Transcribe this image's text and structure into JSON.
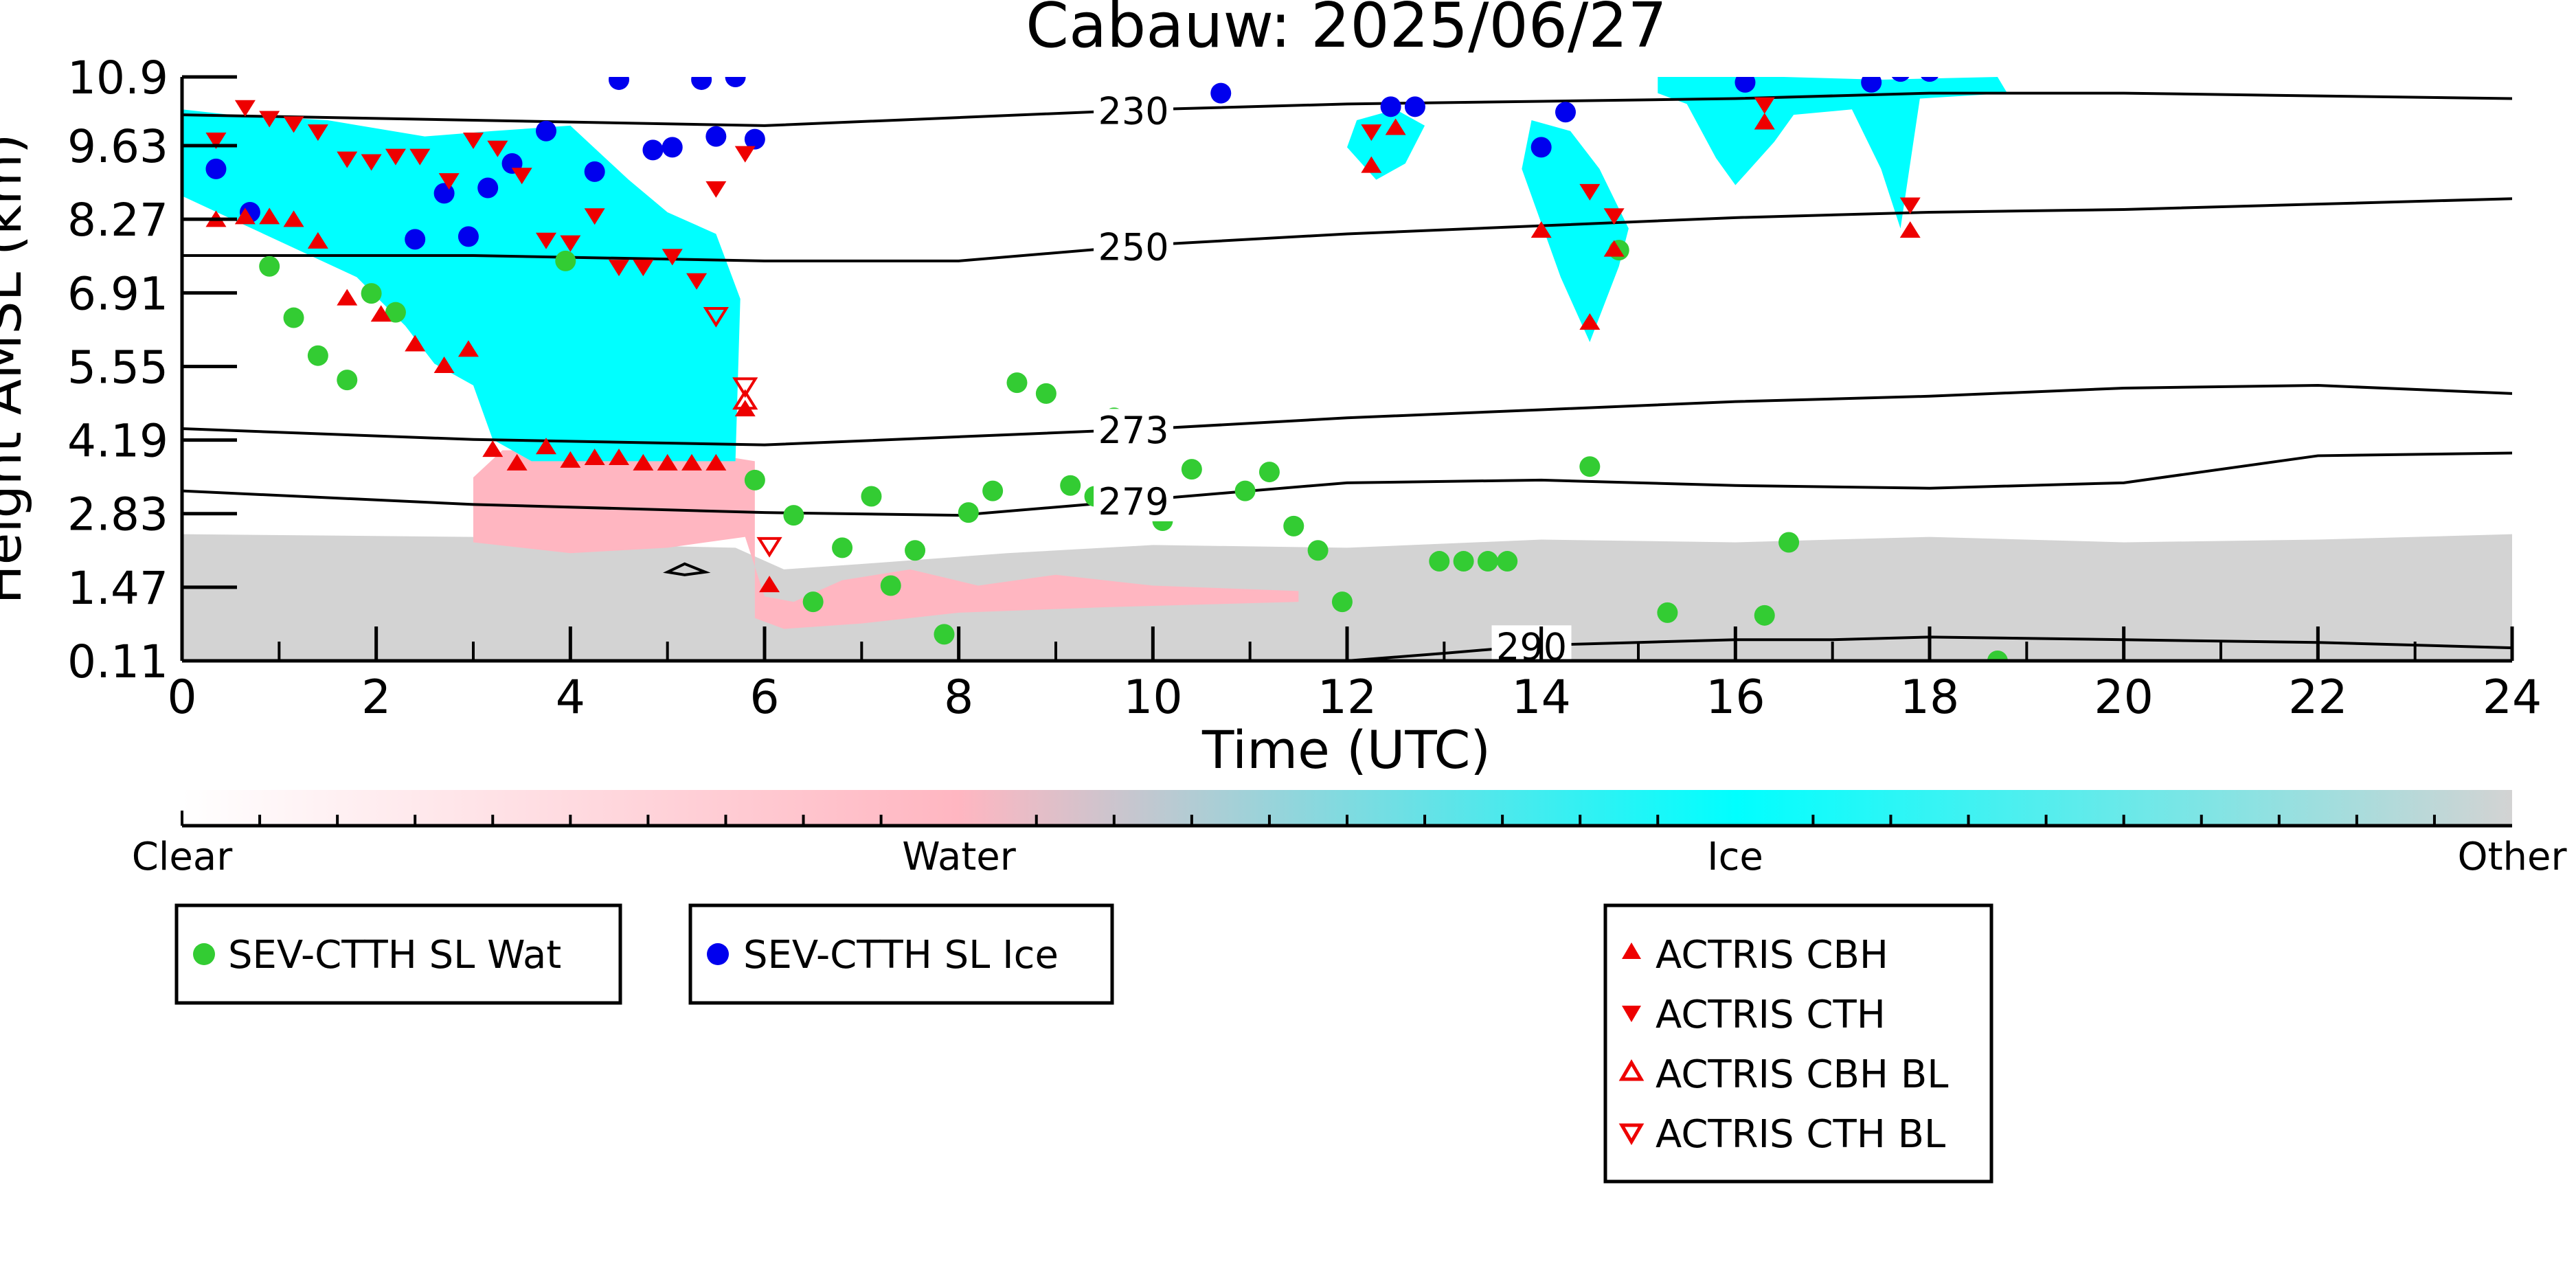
{
  "chart_data": {
    "type": "scatter",
    "title": "Cabauw: 2025/06/27",
    "xlabel": "Time (UTC)",
    "ylabel": "Height AMSL (km)",
    "xlim": [
      0,
      24
    ],
    "ylim": [
      0.11,
      10.9
    ],
    "xticks": [
      "0",
      "2",
      "4",
      "6",
      "8",
      "10",
      "12",
      "14",
      "16",
      "18",
      "20",
      "22",
      "24"
    ],
    "yticks": [
      "0.11",
      "1.47",
      "2.83",
      "4.19",
      "5.55",
      "6.91",
      "8.27",
      "9.63",
      "10.9"
    ],
    "grid": false,
    "colorbar": {
      "labels": [
        "Clear",
        "Water",
        "Ice",
        "Other"
      ],
      "colors": [
        "#ffffff",
        "#ffb6c1",
        "#00ffff",
        "#d3d3d3"
      ]
    },
    "contours": [
      {
        "label": "230",
        "x": [
          0,
          3,
          6,
          8,
          10,
          12,
          14,
          16,
          18,
          20,
          22,
          24
        ],
        "y": [
          10.2,
          10.1,
          10.0,
          10.15,
          10.3,
          10.4,
          10.45,
          10.5,
          10.6,
          10.6,
          10.55,
          10.5
        ]
      },
      {
        "label": "250",
        "x": [
          0,
          3,
          6,
          8,
          10,
          12,
          14,
          16,
          18,
          20,
          22,
          24
        ],
        "y": [
          7.6,
          7.6,
          7.5,
          7.5,
          7.8,
          8.0,
          8.15,
          8.3,
          8.4,
          8.45,
          8.55,
          8.65
        ]
      },
      {
        "label": "273",
        "x": [
          0,
          3,
          6,
          8,
          10,
          12,
          14,
          16,
          18,
          20,
          22,
          24
        ],
        "y": [
          4.4,
          4.2,
          4.1,
          4.25,
          4.4,
          4.6,
          4.75,
          4.9,
          5.0,
          5.15,
          5.2,
          5.05
        ]
      },
      {
        "label": "279",
        "x": [
          0,
          3,
          6,
          8,
          10,
          12,
          14,
          16,
          18,
          20,
          22,
          24
        ],
        "y": [
          3.25,
          3.0,
          2.85,
          2.8,
          3.1,
          3.4,
          3.45,
          3.35,
          3.3,
          3.4,
          3.9,
          3.95
        ]
      },
      {
        "label": "290",
        "x": [
          12,
          13,
          14,
          15,
          16,
          17,
          18,
          20,
          22,
          24
        ],
        "y": [
          0.11,
          0.25,
          0.4,
          0.45,
          0.5,
          0.5,
          0.55,
          0.5,
          0.45,
          0.35
        ]
      }
    ],
    "series": [
      {
        "name": "SEV-CTTH SL Wat",
        "color": "#33cc33",
        "marker": "circle",
        "x": [
          0.9,
          1.15,
          1.4,
          1.7,
          1.95,
          2.2,
          3.95,
          5.9,
          6.3,
          6.5,
          6.8,
          7.1,
          7.3,
          7.55,
          7.85,
          8.1,
          8.35,
          8.6,
          8.9,
          9.15,
          9.4,
          9.6,
          9.85,
          10.1,
          10.4,
          10.95,
          11.2,
          11.45,
          11.7,
          11.95,
          12.95,
          13.2,
          13.45,
          13.65,
          14.5,
          15.3,
          16.3,
          16.55,
          14.8,
          18.7
        ],
        "y": [
          7.4,
          6.45,
          5.75,
          5.3,
          6.9,
          6.55,
          7.5,
          3.45,
          2.8,
          1.2,
          2.2,
          3.15,
          1.5,
          2.15,
          0.6,
          2.85,
          3.25,
          5.25,
          5.05,
          3.35,
          3.15,
          4.6,
          3.05,
          2.7,
          3.65,
          3.25,
          3.6,
          2.6,
          2.15,
          1.2,
          1.95,
          1.95,
          1.95,
          1.95,
          3.7,
          1.0,
          0.95,
          2.3,
          7.7,
          0.11
        ]
      },
      {
        "name": "SEV-CTTH SL Ice",
        "color": "#0000ee",
        "marker": "circle",
        "x": [
          0.35,
          0.7,
          2.4,
          2.7,
          2.95,
          3.15,
          3.4,
          3.75,
          4.25,
          4.5,
          4.85,
          5.05,
          5.35,
          5.5,
          5.7,
          5.9,
          10.7,
          12.45,
          12.7,
          14.0,
          14.25,
          16.1,
          17.4,
          17.7,
          18.0
        ],
        "y": [
          9.2,
          8.4,
          7.9,
          8.75,
          7.95,
          8.85,
          9.3,
          9.9,
          9.15,
          10.85,
          9.55,
          9.6,
          10.85,
          9.8,
          10.9,
          9.75,
          10.6,
          10.35,
          10.35,
          9.6,
          10.25,
          10.8,
          10.8,
          11.0,
          11.0
        ],
        "x_dup_note": ""
      },
      {
        "name": "ACTRIS CBH",
        "color": "#ee0000",
        "marker": "triangle-up",
        "x": [
          0.35,
          0.65,
          0.9,
          1.15,
          1.4,
          1.7,
          2.05,
          2.4,
          2.7,
          2.95,
          3.2,
          3.45,
          3.75,
          4.0,
          4.25,
          4.5,
          4.75,
          5.0,
          5.25,
          5.5,
          5.8,
          6.05,
          12.25,
          12.5,
          14.0,
          14.5,
          14.75,
          16.3,
          17.8
        ],
        "y": [
          8.25,
          8.3,
          8.3,
          8.25,
          7.85,
          6.8,
          6.5,
          5.95,
          5.55,
          5.85,
          4.0,
          3.75,
          4.05,
          3.8,
          3.85,
          3.85,
          3.75,
          3.75,
          3.75,
          3.75,
          4.75,
          1.5,
          9.25,
          9.95,
          8.05,
          6.35,
          7.7,
          10.05,
          8.05
        ]
      },
      {
        "name": "ACTRIS CTH",
        "color": "#ee0000",
        "marker": "triangle-down",
        "x": [
          0.35,
          0.65,
          0.9,
          1.15,
          1.4,
          1.7,
          1.95,
          2.2,
          2.45,
          2.75,
          3.0,
          3.25,
          3.5,
          3.75,
          4.0,
          4.25,
          4.5,
          4.75,
          5.05,
          5.3,
          5.5,
          5.8,
          12.25,
          14.5,
          14.75,
          16.3,
          17.8
        ],
        "y": [
          9.75,
          10.35,
          10.15,
          10.05,
          9.9,
          9.4,
          9.35,
          9.45,
          9.45,
          9.0,
          9.75,
          9.6,
          9.1,
          7.9,
          7.85,
          8.35,
          7.4,
          7.4,
          7.6,
          7.15,
          8.85,
          9.5,
          9.9,
          8.8,
          8.35,
          10.4,
          8.55
        ]
      },
      {
        "name": "ACTRIS CBH BL",
        "color": "#ee0000",
        "marker": "triangle-up-open",
        "x": [
          5.8
        ],
        "y": [
          4.9
        ]
      },
      {
        "name": "ACTRIS CTH BL",
        "color": "#ee0000",
        "marker": "triangle-down-open",
        "x": [
          5.5,
          5.8,
          6.05
        ],
        "y": [
          6.5,
          5.2,
          2.25
        ]
      }
    ],
    "legend_groups": [
      [
        "SEV-CTTH SL Wat"
      ],
      [
        "SEV-CTTH SL Ice"
      ],
      [
        "ACTRIS CBH",
        "ACTRIS CTH",
        "ACTRIS CBH BL",
        "ACTRIS CTH BL"
      ]
    ]
  }
}
